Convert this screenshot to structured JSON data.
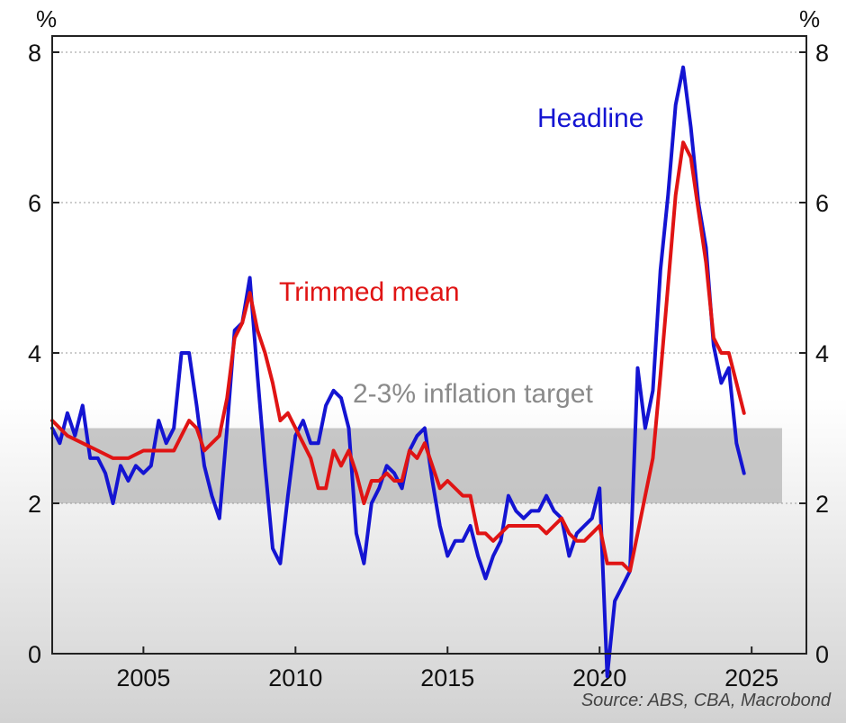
{
  "chart_data": {
    "type": "line",
    "source": "Source: ABS, CBA, Macrobond",
    "y_unit_left": "%",
    "y_unit_right": "%",
    "xlim": [
      2002.0,
      2026.8
    ],
    "ylim": [
      0,
      8.2
    ],
    "x_ticks": [
      2005,
      2010,
      2015,
      2020,
      2025
    ],
    "x_tick_labels": [
      "2005",
      "2010",
      "2015",
      "2020",
      "2025"
    ],
    "y_ticks": [
      0,
      2,
      4,
      6,
      8
    ],
    "y_tick_labels": [
      "0",
      "2",
      "4",
      "6",
      "8"
    ],
    "grid": "horizontal dotted",
    "target_band": {
      "label": "2-3% inflation target",
      "ymin": 2,
      "ymax": 3,
      "xmin": 2002.0,
      "xmax": 2026.0,
      "color": "#bdbdbd"
    },
    "series": [
      {
        "name": "Headline",
        "color": "#1414d2",
        "points": [
          [
            2002.0,
            3.0
          ],
          [
            2002.25,
            2.8
          ],
          [
            2002.5,
            3.2
          ],
          [
            2002.75,
            2.9
          ],
          [
            2003.0,
            3.3
          ],
          [
            2003.25,
            2.6
          ],
          [
            2003.5,
            2.6
          ],
          [
            2003.75,
            2.4
          ],
          [
            2004.0,
            2.0
          ],
          [
            2004.25,
            2.5
          ],
          [
            2004.5,
            2.3
          ],
          [
            2004.75,
            2.5
          ],
          [
            2005.0,
            2.4
          ],
          [
            2005.25,
            2.5
          ],
          [
            2005.5,
            3.1
          ],
          [
            2005.75,
            2.8
          ],
          [
            2006.0,
            3.0
          ],
          [
            2006.25,
            4.0
          ],
          [
            2006.5,
            4.0
          ],
          [
            2006.75,
            3.3
          ],
          [
            2007.0,
            2.5
          ],
          [
            2007.25,
            2.1
          ],
          [
            2007.5,
            1.8
          ],
          [
            2007.75,
            3.0
          ],
          [
            2008.0,
            4.3
          ],
          [
            2008.25,
            4.4
          ],
          [
            2008.5,
            5.0
          ],
          [
            2008.75,
            3.7
          ],
          [
            2009.0,
            2.5
          ],
          [
            2009.25,
            1.4
          ],
          [
            2009.5,
            1.2
          ],
          [
            2009.75,
            2.1
          ],
          [
            2010.0,
            2.9
          ],
          [
            2010.25,
            3.1
          ],
          [
            2010.5,
            2.8
          ],
          [
            2010.75,
            2.8
          ],
          [
            2011.0,
            3.3
          ],
          [
            2011.25,
            3.5
          ],
          [
            2011.5,
            3.4
          ],
          [
            2011.75,
            3.0
          ],
          [
            2012.0,
            1.6
          ],
          [
            2012.25,
            1.2
          ],
          [
            2012.5,
            2.0
          ],
          [
            2012.75,
            2.2
          ],
          [
            2013.0,
            2.5
          ],
          [
            2013.25,
            2.4
          ],
          [
            2013.5,
            2.2
          ],
          [
            2013.75,
            2.7
          ],
          [
            2014.0,
            2.9
          ],
          [
            2014.25,
            3.0
          ],
          [
            2014.5,
            2.3
          ],
          [
            2014.75,
            1.7
          ],
          [
            2015.0,
            1.3
          ],
          [
            2015.25,
            1.5
          ],
          [
            2015.5,
            1.5
          ],
          [
            2015.75,
            1.7
          ],
          [
            2016.0,
            1.3
          ],
          [
            2016.25,
            1.0
          ],
          [
            2016.5,
            1.3
          ],
          [
            2016.75,
            1.5
          ],
          [
            2017.0,
            2.1
          ],
          [
            2017.25,
            1.9
          ],
          [
            2017.5,
            1.8
          ],
          [
            2017.75,
            1.9
          ],
          [
            2018.0,
            1.9
          ],
          [
            2018.25,
            2.1
          ],
          [
            2018.5,
            1.9
          ],
          [
            2018.75,
            1.8
          ],
          [
            2019.0,
            1.3
          ],
          [
            2019.25,
            1.6
          ],
          [
            2019.5,
            1.7
          ],
          [
            2019.75,
            1.8
          ],
          [
            2020.0,
            2.2
          ],
          [
            2020.25,
            -0.3
          ],
          [
            2020.5,
            0.7
          ],
          [
            2020.75,
            0.9
          ],
          [
            2021.0,
            1.1
          ],
          [
            2021.25,
            3.8
          ],
          [
            2021.5,
            3.0
          ],
          [
            2021.75,
            3.5
          ],
          [
            2022.0,
            5.1
          ],
          [
            2022.25,
            6.1
          ],
          [
            2022.5,
            7.3
          ],
          [
            2022.75,
            7.8
          ],
          [
            2023.0,
            7.0
          ],
          [
            2023.25,
            6.0
          ],
          [
            2023.5,
            5.4
          ],
          [
            2023.75,
            4.1
          ],
          [
            2024.0,
            3.6
          ],
          [
            2024.25,
            3.8
          ],
          [
            2024.5,
            2.8
          ],
          [
            2024.75,
            2.4
          ]
        ]
      },
      {
        "name": "Trimmed mean",
        "color": "#e01414",
        "points": [
          [
            2002.0,
            3.1
          ],
          [
            2002.5,
            2.9
          ],
          [
            2003.0,
            2.8
          ],
          [
            2003.5,
            2.7
          ],
          [
            2004.0,
            2.6
          ],
          [
            2004.5,
            2.6
          ],
          [
            2005.0,
            2.7
          ],
          [
            2005.5,
            2.7
          ],
          [
            2006.0,
            2.7
          ],
          [
            2006.25,
            2.9
          ],
          [
            2006.5,
            3.1
          ],
          [
            2006.75,
            3.0
          ],
          [
            2007.0,
            2.7
          ],
          [
            2007.5,
            2.9
          ],
          [
            2007.75,
            3.4
          ],
          [
            2008.0,
            4.2
          ],
          [
            2008.25,
            4.4
          ],
          [
            2008.5,
            4.8
          ],
          [
            2008.75,
            4.3
          ],
          [
            2009.0,
            4.0
          ],
          [
            2009.25,
            3.6
          ],
          [
            2009.5,
            3.1
          ],
          [
            2009.75,
            3.2
          ],
          [
            2010.0,
            3.0
          ],
          [
            2010.25,
            2.8
          ],
          [
            2010.5,
            2.6
          ],
          [
            2010.75,
            2.2
          ],
          [
            2011.0,
            2.2
          ],
          [
            2011.25,
            2.7
          ],
          [
            2011.5,
            2.5
          ],
          [
            2011.75,
            2.7
          ],
          [
            2012.0,
            2.4
          ],
          [
            2012.25,
            2.0
          ],
          [
            2012.5,
            2.3
          ],
          [
            2012.75,
            2.3
          ],
          [
            2013.0,
            2.4
          ],
          [
            2013.25,
            2.3
          ],
          [
            2013.5,
            2.3
          ],
          [
            2013.75,
            2.7
          ],
          [
            2014.0,
            2.6
          ],
          [
            2014.25,
            2.8
          ],
          [
            2014.5,
            2.5
          ],
          [
            2014.75,
            2.2
          ],
          [
            2015.0,
            2.3
          ],
          [
            2015.5,
            2.1
          ],
          [
            2015.75,
            2.1
          ],
          [
            2016.0,
            1.6
          ],
          [
            2016.25,
            1.6
          ],
          [
            2016.5,
            1.5
          ],
          [
            2016.75,
            1.6
          ],
          [
            2017.0,
            1.7
          ],
          [
            2017.5,
            1.7
          ],
          [
            2018.0,
            1.7
          ],
          [
            2018.25,
            1.6
          ],
          [
            2018.5,
            1.7
          ],
          [
            2018.75,
            1.8
          ],
          [
            2019.0,
            1.6
          ],
          [
            2019.25,
            1.5
          ],
          [
            2019.5,
            1.5
          ],
          [
            2019.75,
            1.6
          ],
          [
            2020.0,
            1.7
          ],
          [
            2020.25,
            1.2
          ],
          [
            2020.5,
            1.2
          ],
          [
            2020.75,
            1.2
          ],
          [
            2021.0,
            1.1
          ],
          [
            2021.25,
            1.6
          ],
          [
            2021.5,
            2.1
          ],
          [
            2021.75,
            2.6
          ],
          [
            2022.0,
            3.7
          ],
          [
            2022.25,
            4.9
          ],
          [
            2022.5,
            6.1
          ],
          [
            2022.75,
            6.8
          ],
          [
            2023.0,
            6.6
          ],
          [
            2023.25,
            5.9
          ],
          [
            2023.5,
            5.2
          ],
          [
            2023.75,
            4.2
          ],
          [
            2024.0,
            4.0
          ],
          [
            2024.25,
            4.0
          ],
          [
            2024.5,
            3.6
          ],
          [
            2024.75,
            3.2
          ]
        ]
      }
    ]
  }
}
